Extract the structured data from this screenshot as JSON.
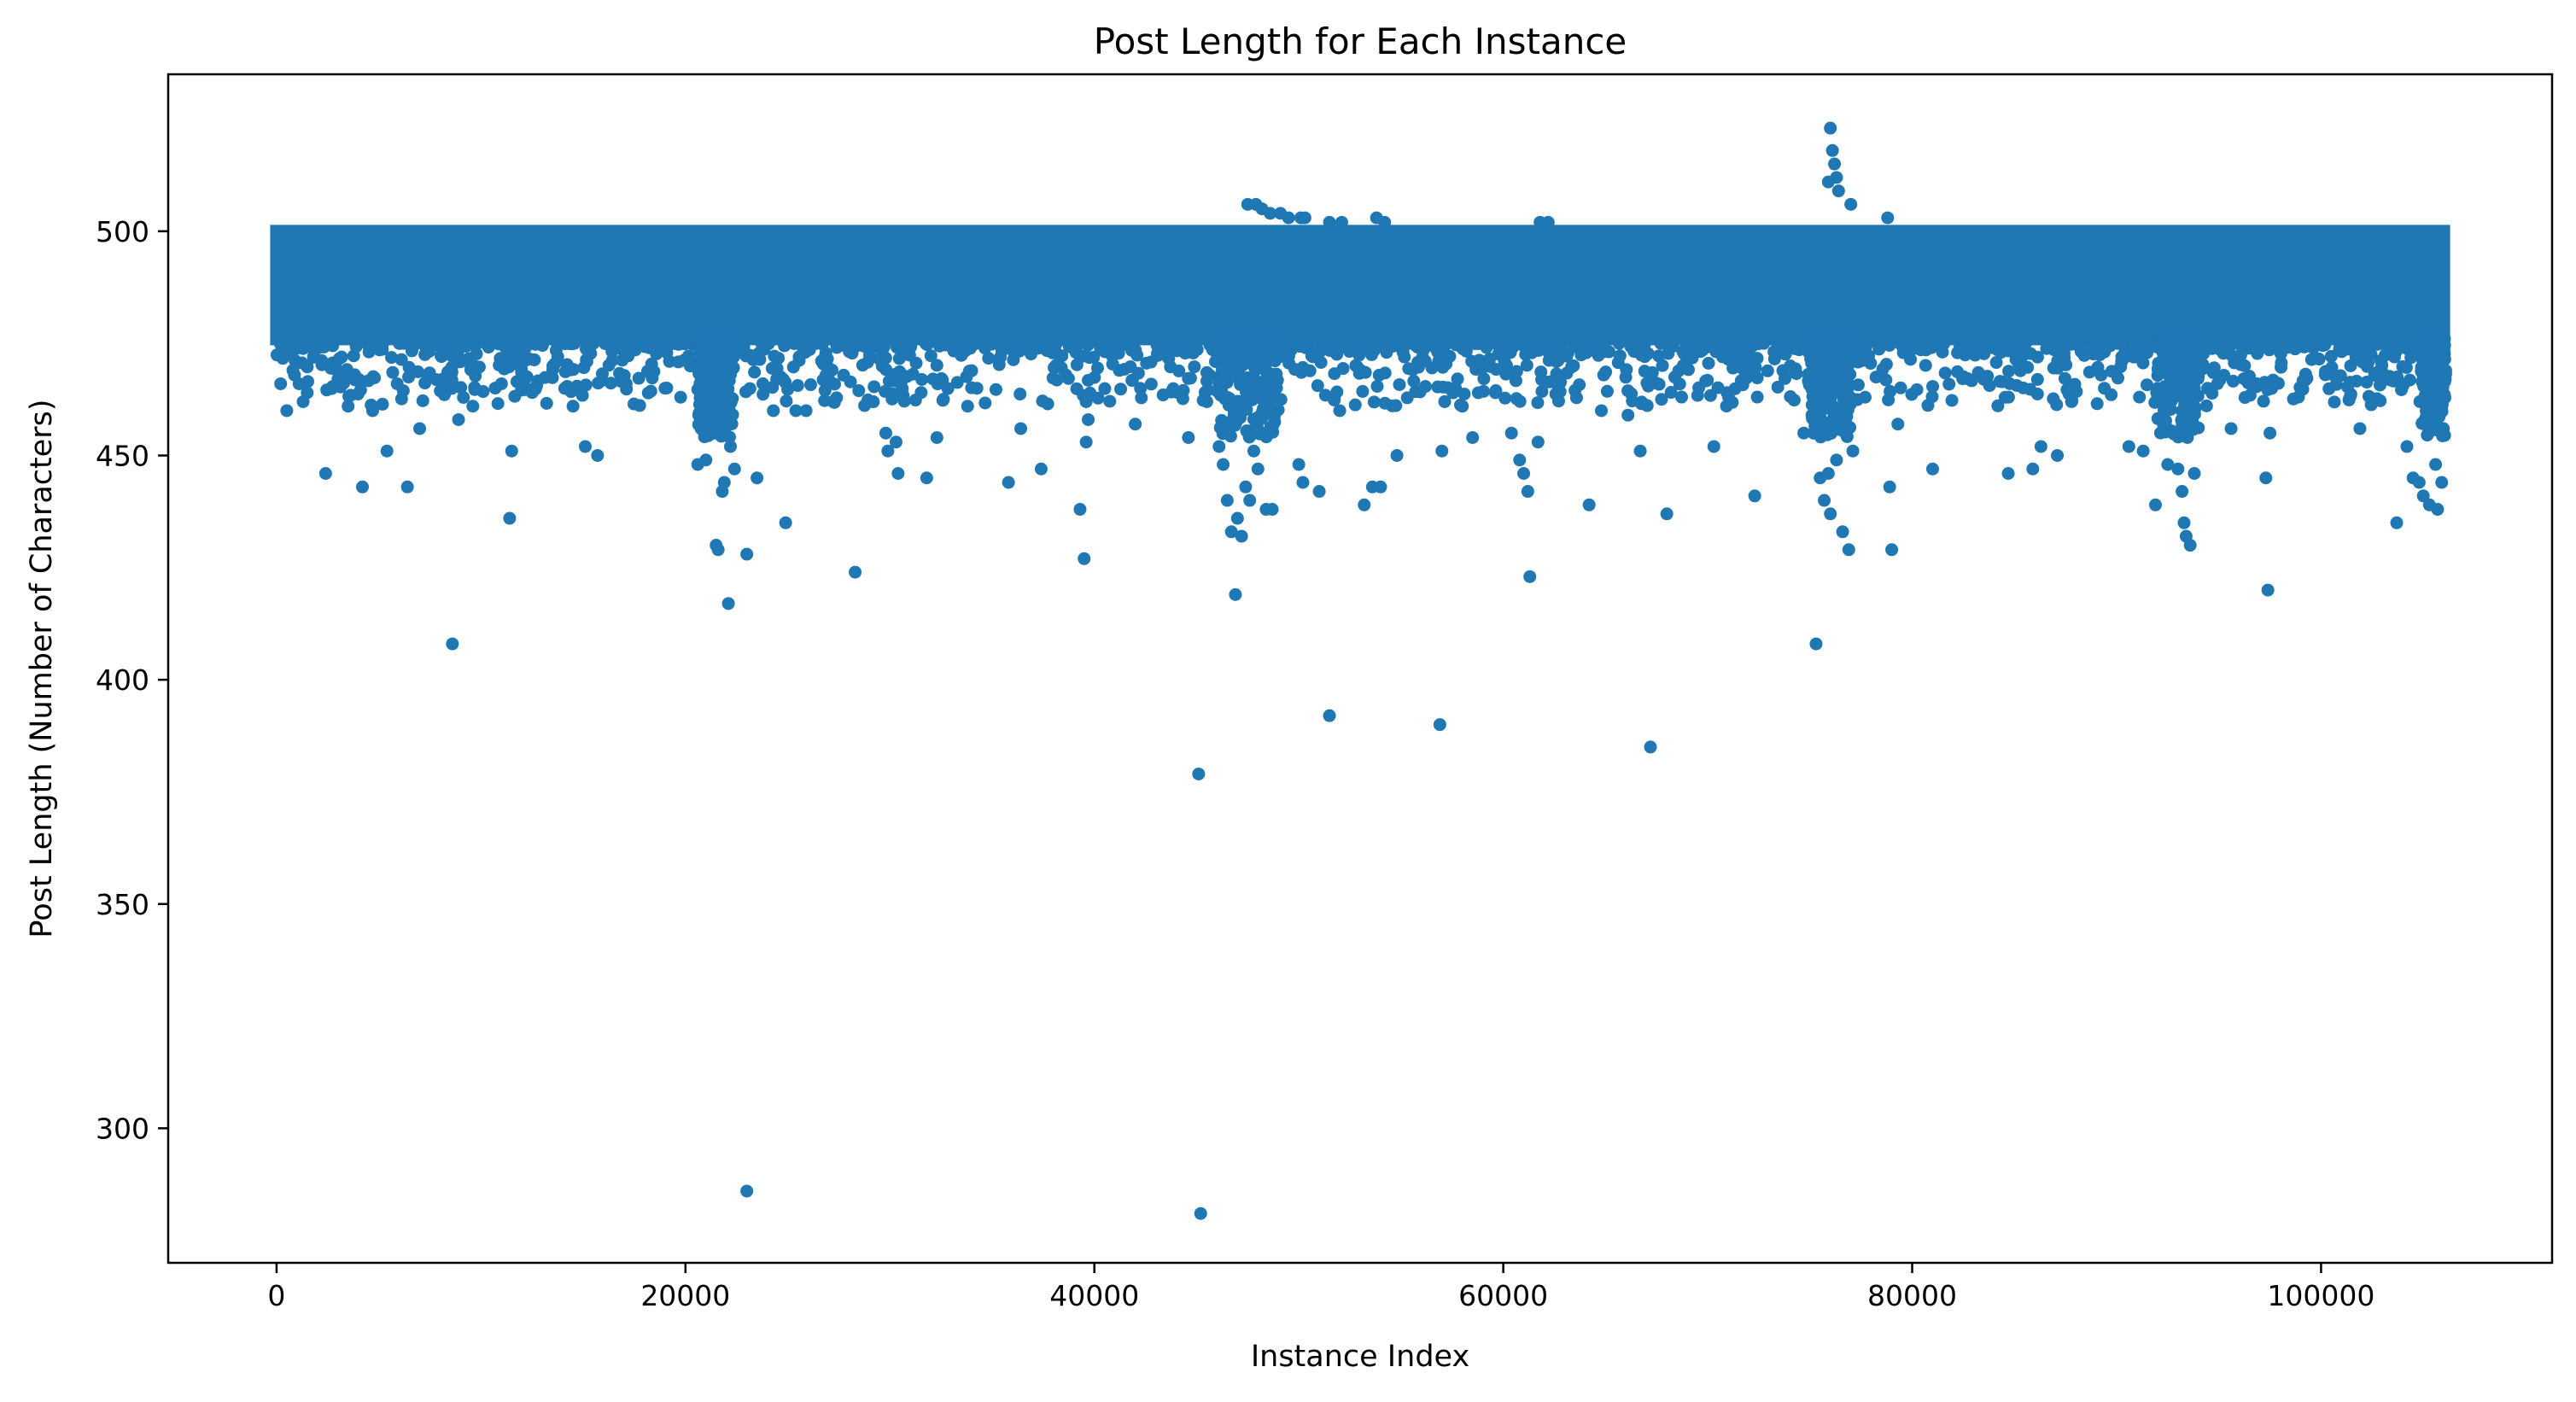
{
  "chart_data": {
    "type": "scatter",
    "title": "Post Length for Each Instance",
    "xlabel": "Instance Index",
    "ylabel": "Post Length (Number of Characters)",
    "xlim": [
      -5300,
      111300
    ],
    "ylim": [
      270,
      535
    ],
    "x_ticks": [
      0,
      20000,
      40000,
      60000,
      80000,
      100000
    ],
    "x_tick_labels": [
      "0",
      "20000",
      "40000",
      "60000",
      "80000",
      "100000"
    ],
    "y_ticks": [
      300,
      350,
      400,
      450,
      500
    ],
    "y_tick_labels": [
      "300",
      "350",
      "400",
      "450",
      "500"
    ],
    "grid": false,
    "legend": "none",
    "point_count": 106000,
    "series": [
      {
        "color": "#1f77b4",
        "dense_band": {
          "x_range": [
            0,
            106000
          ],
          "y_range": [
            476,
            500
          ]
        },
        "outliers": [
          {
            "x": 200,
            "y": 466
          },
          {
            "x": 500,
            "y": 460
          },
          {
            "x": 800,
            "y": 469
          },
          {
            "x": 1100,
            "y": 466
          },
          {
            "x": 1300,
            "y": 462
          },
          {
            "x": 1500,
            "y": 464
          },
          {
            "x": 2400,
            "y": 446
          },
          {
            "x": 3000,
            "y": 467
          },
          {
            "x": 3500,
            "y": 461
          },
          {
            "x": 4200,
            "y": 443
          },
          {
            "x": 4700,
            "y": 460
          },
          {
            "x": 5400,
            "y": 451
          },
          {
            "x": 5900,
            "y": 466
          },
          {
            "x": 6400,
            "y": 443
          },
          {
            "x": 7000,
            "y": 456
          },
          {
            "x": 8100,
            "y": 467
          },
          {
            "x": 8600,
            "y": 408
          },
          {
            "x": 8900,
            "y": 458
          },
          {
            "x": 9600,
            "y": 461
          },
          {
            "x": 11000,
            "y": 466
          },
          {
            "x": 11400,
            "y": 436
          },
          {
            "x": 11500,
            "y": 451
          },
          {
            "x": 14500,
            "y": 461
          },
          {
            "x": 15100,
            "y": 452
          },
          {
            "x": 15700,
            "y": 450
          },
          {
            "x": 17100,
            "y": 466
          },
          {
            "x": 19000,
            "y": 465
          },
          {
            "x": 20600,
            "y": 448
          },
          {
            "x": 21000,
            "y": 449
          },
          {
            "x": 21400,
            "y": 455
          },
          {
            "x": 21500,
            "y": 430
          },
          {
            "x": 21600,
            "y": 429
          },
          {
            "x": 21800,
            "y": 442
          },
          {
            "x": 21900,
            "y": 444
          },
          {
            "x": 22100,
            "y": 417
          },
          {
            "x": 22200,
            "y": 452
          },
          {
            "x": 22400,
            "y": 447
          },
          {
            "x": 23000,
            "y": 428
          },
          {
            "x": 23000,
            "y": 286
          },
          {
            "x": 23500,
            "y": 445
          },
          {
            "x": 24300,
            "y": 460
          },
          {
            "x": 24900,
            "y": 435
          },
          {
            "x": 25400,
            "y": 460
          },
          {
            "x": 25900,
            "y": 460
          },
          {
            "x": 28300,
            "y": 424
          },
          {
            "x": 29800,
            "y": 455
          },
          {
            "x": 29900,
            "y": 451
          },
          {
            "x": 30300,
            "y": 453
          },
          {
            "x": 30400,
            "y": 446
          },
          {
            "x": 31800,
            "y": 445
          },
          {
            "x": 32300,
            "y": 454
          },
          {
            "x": 33800,
            "y": 461
          },
          {
            "x": 35800,
            "y": 444
          },
          {
            "x": 36400,
            "y": 456
          },
          {
            "x": 37400,
            "y": 447
          },
          {
            "x": 38600,
            "y": 468
          },
          {
            "x": 39300,
            "y": 438
          },
          {
            "x": 39500,
            "y": 427
          },
          {
            "x": 39600,
            "y": 453
          },
          {
            "x": 39700,
            "y": 458
          },
          {
            "x": 42000,
            "y": 457
          },
          {
            "x": 44100,
            "y": 464
          },
          {
            "x": 44600,
            "y": 454
          },
          {
            "x": 45100,
            "y": 379
          },
          {
            "x": 45200,
            "y": 281
          },
          {
            "x": 45500,
            "y": 462
          },
          {
            "x": 46100,
            "y": 452
          },
          {
            "x": 46300,
            "y": 448
          },
          {
            "x": 46500,
            "y": 440
          },
          {
            "x": 46700,
            "y": 433
          },
          {
            "x": 46900,
            "y": 419
          },
          {
            "x": 47000,
            "y": 436
          },
          {
            "x": 47200,
            "y": 432
          },
          {
            "x": 47400,
            "y": 443
          },
          {
            "x": 47600,
            "y": 440
          },
          {
            "x": 47800,
            "y": 451
          },
          {
            "x": 48000,
            "y": 447
          },
          {
            "x": 48400,
            "y": 438
          },
          {
            "x": 48700,
            "y": 438
          },
          {
            "x": 50000,
            "y": 448
          },
          {
            "x": 50200,
            "y": 444
          },
          {
            "x": 51000,
            "y": 442
          },
          {
            "x": 51500,
            "y": 392
          },
          {
            "x": 52000,
            "y": 460
          },
          {
            "x": 53200,
            "y": 439
          },
          {
            "x": 53600,
            "y": 443
          },
          {
            "x": 54000,
            "y": 443
          },
          {
            "x": 54800,
            "y": 450
          },
          {
            "x": 56900,
            "y": 390
          },
          {
            "x": 57000,
            "y": 451
          },
          {
            "x": 58000,
            "y": 461
          },
          {
            "x": 58500,
            "y": 454
          },
          {
            "x": 60400,
            "y": 455
          },
          {
            "x": 60800,
            "y": 449
          },
          {
            "x": 61000,
            "y": 446
          },
          {
            "x": 61200,
            "y": 442
          },
          {
            "x": 61300,
            "y": 423
          },
          {
            "x": 61700,
            "y": 453
          },
          {
            "x": 64200,
            "y": 439
          },
          {
            "x": 64800,
            "y": 460
          },
          {
            "x": 66100,
            "y": 459
          },
          {
            "x": 66700,
            "y": 451
          },
          {
            "x": 67200,
            "y": 385
          },
          {
            "x": 68000,
            "y": 437
          },
          {
            "x": 70300,
            "y": 452
          },
          {
            "x": 72300,
            "y": 441
          },
          {
            "x": 74700,
            "y": 455
          },
          {
            "x": 75300,
            "y": 408
          },
          {
            "x": 75500,
            "y": 445
          },
          {
            "x": 75700,
            "y": 440
          },
          {
            "x": 75900,
            "y": 446
          },
          {
            "x": 76000,
            "y": 437
          },
          {
            "x": 76300,
            "y": 449
          },
          {
            "x": 76600,
            "y": 433
          },
          {
            "x": 76900,
            "y": 429
          },
          {
            "x": 77100,
            "y": 451
          },
          {
            "x": 77700,
            "y": 463
          },
          {
            "x": 78900,
            "y": 443
          },
          {
            "x": 79000,
            "y": 429
          },
          {
            "x": 79300,
            "y": 457
          },
          {
            "x": 81000,
            "y": 447
          },
          {
            "x": 84700,
            "y": 446
          },
          {
            "x": 85900,
            "y": 447
          },
          {
            "x": 86300,
            "y": 452
          },
          {
            "x": 87100,
            "y": 450
          },
          {
            "x": 89400,
            "y": 465
          },
          {
            "x": 90600,
            "y": 452
          },
          {
            "x": 91300,
            "y": 451
          },
          {
            "x": 91900,
            "y": 439
          },
          {
            "x": 92500,
            "y": 448
          },
          {
            "x": 93000,
            "y": 447
          },
          {
            "x": 93200,
            "y": 442
          },
          {
            "x": 93300,
            "y": 435
          },
          {
            "x": 93400,
            "y": 432
          },
          {
            "x": 93600,
            "y": 430
          },
          {
            "x": 93800,
            "y": 446
          },
          {
            "x": 95600,
            "y": 456
          },
          {
            "x": 97300,
            "y": 445
          },
          {
            "x": 97400,
            "y": 420
          },
          {
            "x": 97500,
            "y": 455
          },
          {
            "x": 101900,
            "y": 456
          },
          {
            "x": 103700,
            "y": 435
          },
          {
            "x": 104200,
            "y": 452
          },
          {
            "x": 104500,
            "y": 445
          },
          {
            "x": 104800,
            "y": 444
          },
          {
            "x": 105000,
            "y": 441
          },
          {
            "x": 105300,
            "y": 439
          },
          {
            "x": 105600,
            "y": 448
          },
          {
            "x": 105700,
            "y": 438
          },
          {
            "x": 105900,
            "y": 444
          },
          {
            "x": 76000,
            "y": 523
          },
          {
            "x": 76100,
            "y": 518
          },
          {
            "x": 76200,
            "y": 515
          },
          {
            "x": 76300,
            "y": 512
          },
          {
            "x": 76400,
            "y": 509
          },
          {
            "x": 75900,
            "y": 511
          },
          {
            "x": 77000,
            "y": 506
          },
          {
            "x": 78800,
            "y": 503
          },
          {
            "x": 47500,
            "y": 506
          },
          {
            "x": 47900,
            "y": 506
          },
          {
            "x": 48200,
            "y": 505
          },
          {
            "x": 48600,
            "y": 504
          },
          {
            "x": 49100,
            "y": 504
          },
          {
            "x": 49500,
            "y": 503
          },
          {
            "x": 50100,
            "y": 503
          },
          {
            "x": 50300,
            "y": 503
          },
          {
            "x": 51500,
            "y": 502
          },
          {
            "x": 52100,
            "y": 502
          },
          {
            "x": 53800,
            "y": 503
          },
          {
            "x": 54200,
            "y": 502
          },
          {
            "x": 61800,
            "y": 502
          },
          {
            "x": 62200,
            "y": 502
          }
        ]
      }
    ]
  }
}
